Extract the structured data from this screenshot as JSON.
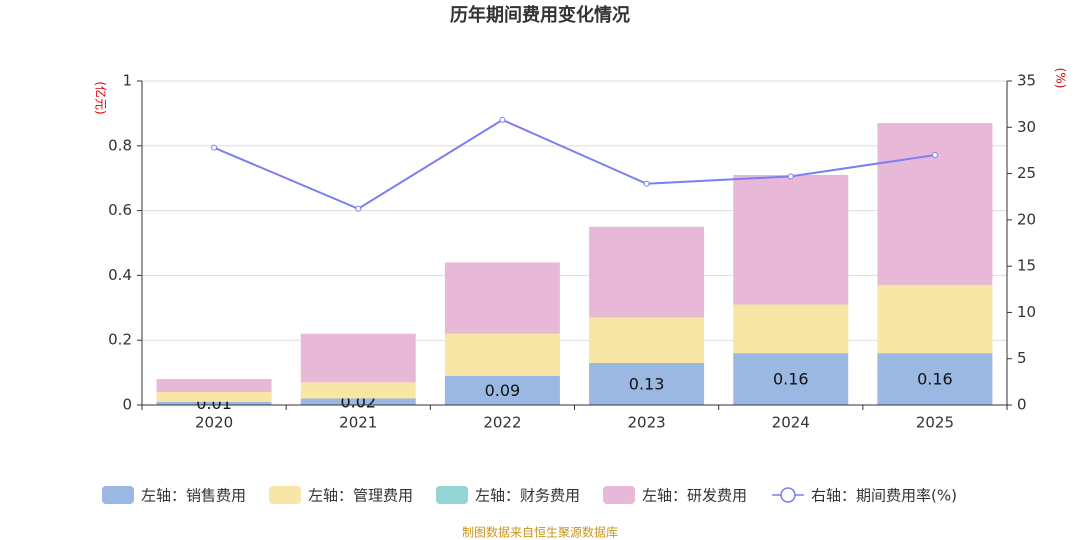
{
  "chart_data": {
    "type": "bar",
    "title": "历年期间费用变化情况",
    "y_label": "(亿元)",
    "y2_label": "(%)",
    "categories": [
      "2020",
      "2021",
      "2022",
      "2023",
      "2024",
      "2025"
    ],
    "series": [
      {
        "name": "左轴：销售费用",
        "color": "#9bb8e3",
        "values": [
          0.01,
          0.02,
          0.09,
          0.13,
          0.16,
          0.16
        ]
      },
      {
        "name": "左轴：管理费用",
        "color": "#f8e6a6",
        "values": [
          0.03,
          0.05,
          0.13,
          0.14,
          0.15,
          0.21
        ]
      },
      {
        "name": "左轴：财务费用",
        "color": "#93d4d4",
        "values": [
          0,
          0,
          0,
          0,
          0,
          0
        ]
      },
      {
        "name": "左轴：研发费用",
        "color": "#e8b8d9",
        "values": [
          0.04,
          0.15,
          0.22,
          0.28,
          0.4,
          0.5
        ]
      },
      {
        "name": "右轴：期间费用率(%)",
        "color": "#7b7ff0",
        "type": "line",
        "axis": "y2",
        "values": [
          27.8,
          21.2,
          30.8,
          23.9,
          24.7,
          27.0
        ]
      }
    ],
    "ylim": [
      0,
      1
    ],
    "yticks": [
      0,
      0.2,
      0.4,
      0.6,
      0.8,
      1
    ],
    "y2lim": [
      0,
      35
    ],
    "y2ticks": [
      0,
      5,
      10,
      15,
      20,
      25,
      30,
      35
    ],
    "grid": true,
    "source": "制图数据来自恒生聚源数据库"
  }
}
